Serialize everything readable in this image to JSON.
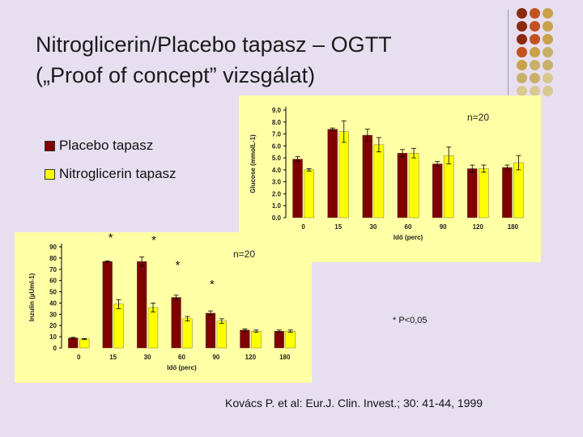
{
  "slide": {
    "title_line1": "Nitroglicerin/Placebo tapasz – OGTT",
    "title_line2": "(„Proof of concept” vizsgálat)",
    "significance_note": "*  P<0,05",
    "citation": "Kovács P. et al: Eur.J. Clin. Invest.; 30: 41-44, 1999",
    "colors": {
      "background": "#e7dff0",
      "panel": "#ffffa5",
      "placebo": "#800000",
      "nitro": "#ffff00"
    },
    "decor_dots": [
      [
        "#8b2a0e",
        "#c2521e",
        "#c9a24a"
      ],
      [
        "#8b2a0e",
        "#c2521e",
        "#c9a24a"
      ],
      [
        "#8b2a0e",
        "#c2521e",
        "#c9a24a"
      ],
      [
        "#c2521e",
        "#c9a24a",
        "#c9b06a"
      ],
      [
        "#c9a24a",
        "#c9b06a",
        "#c9b06a"
      ],
      [
        "#c9b06a",
        "#c9b06a",
        "#d8c890"
      ],
      [
        "#d8c890",
        "#d8c890",
        "#d8c890"
      ]
    ]
  },
  "legend": [
    {
      "label": "Placebo tapasz",
      "color": "#800000"
    },
    {
      "label": "Nitroglicerin tapasz",
      "color": "#ffff00"
    }
  ],
  "chart_data": [
    {
      "type": "bar",
      "ylabel": "Glucose (mmolL-1)",
      "xlabel": "Idő (perc)",
      "annotation": "n=20",
      "categories": [
        "0",
        "15",
        "30",
        "60",
        "90",
        "120",
        "180"
      ],
      "y_ticks": [
        "0.0",
        "1.0",
        "2.0",
        "3.0",
        "4.0",
        "5.0",
        "6.0",
        "7.0",
        "8.0",
        "9.0"
      ],
      "ylim": [
        0,
        9
      ],
      "series": [
        {
          "values": [
            4.9,
            7.4,
            6.9,
            5.4,
            4.5,
            4.1,
            4.2
          ],
          "errors": [
            0.2,
            0.1,
            0.5,
            0.3,
            0.2,
            0.3,
            0.2
          ]
        },
        {
          "values": [
            4.0,
            7.2,
            6.1,
            5.4,
            5.2,
            4.1,
            4.6
          ],
          "errors": [
            0.1,
            0.9,
            0.6,
            0.4,
            0.7,
            0.3,
            0.6
          ]
        }
      ]
    },
    {
      "type": "bar",
      "ylabel": "Inzulin (µUml-1)",
      "xlabel": "Idő (perc)",
      "annotation": "n=20",
      "categories": [
        "0",
        "15",
        "30",
        "60",
        "90",
        "120",
        "180"
      ],
      "y_ticks": [
        "0",
        "10",
        "20",
        "30",
        "40",
        "50",
        "60",
        "70",
        "80",
        "90"
      ],
      "ylim": [
        0,
        90
      ],
      "significance": [
        "",
        "*",
        "*",
        "*",
        "*",
        "",
        ""
      ],
      "series": [
        {
          "values": [
            9,
            77,
            77,
            45,
            31,
            16,
            15
          ],
          "errors": [
            0.5,
            0.5,
            4,
            2,
            2,
            1,
            1
          ]
        },
        {
          "values": [
            8,
            39,
            36,
            26,
            24,
            15,
            15
          ],
          "errors": [
            0.5,
            4,
            4,
            2,
            2,
            1,
            1
          ]
        }
      ]
    }
  ]
}
